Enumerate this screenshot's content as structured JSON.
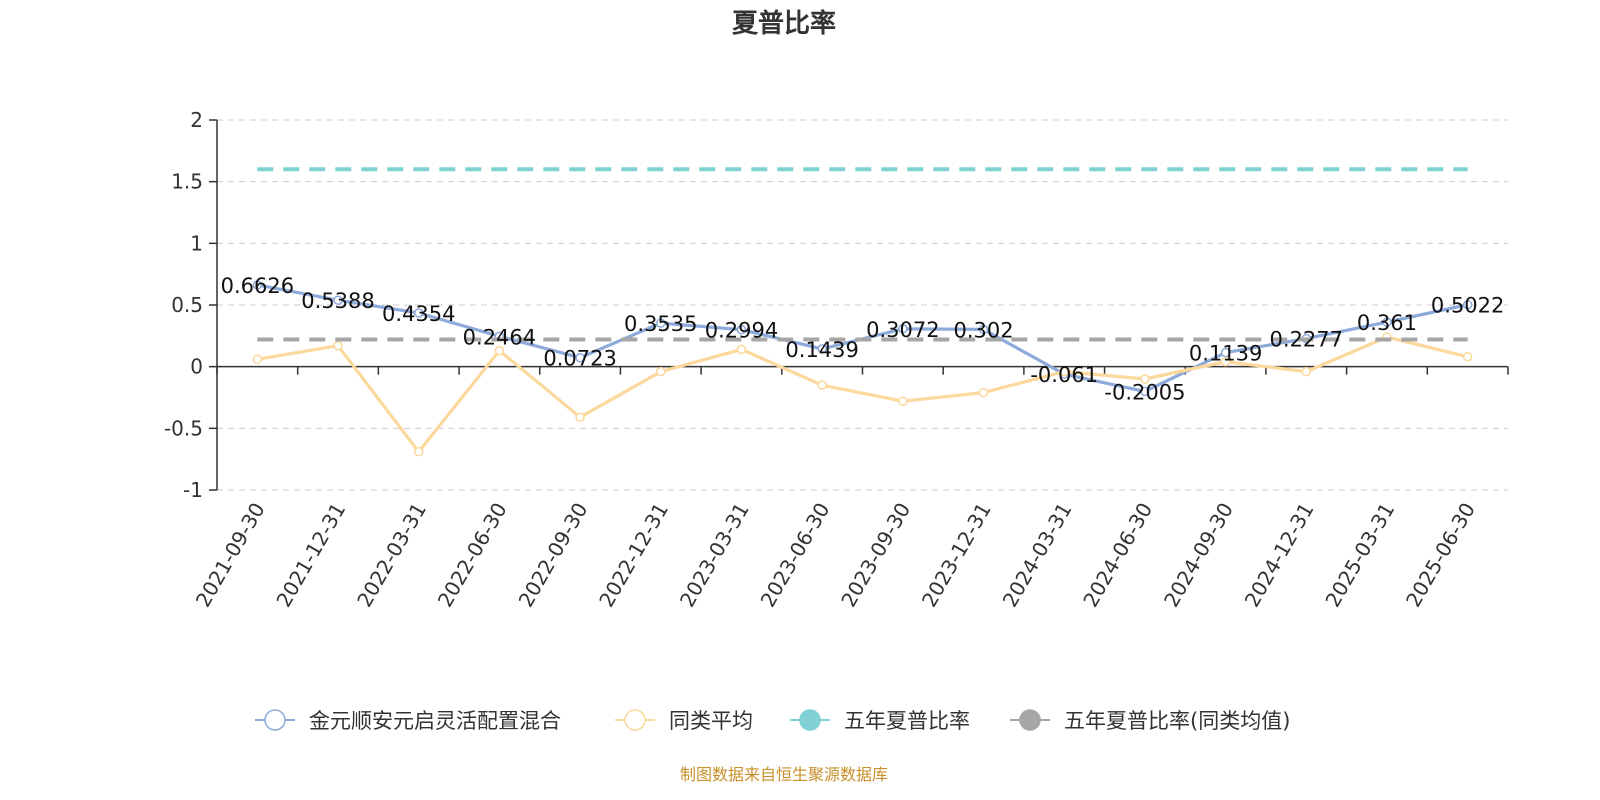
{
  "chart_data": {
    "type": "line",
    "title": "夏普比率",
    "source": "制图数据来自恒生聚源数据库",
    "categories": [
      "2021-09-30",
      "2021-12-31",
      "2022-03-31",
      "2022-06-30",
      "2022-09-30",
      "2022-12-31",
      "2023-03-31",
      "2023-06-30",
      "2023-09-30",
      "2023-12-31",
      "2024-03-31",
      "2024-06-30",
      "2024-09-30",
      "2024-12-31",
      "2025-03-31",
      "2025-06-30"
    ],
    "ylim": [
      -1,
      2
    ],
    "yticks": [
      -1,
      -0.5,
      0,
      0.5,
      1,
      1.5,
      2
    ],
    "ytick_labels": [
      "-1",
      "-0.5",
      "0",
      "0.5",
      "1",
      "1.5",
      "2"
    ],
    "grid": true,
    "legend_position": "bottom",
    "series": [
      {
        "name": "金元顺安元启灵活配置混合",
        "color": "#8eaadb",
        "values": [
          0.6626,
          0.5388,
          0.4354,
          0.2464,
          0.0723,
          0.3535,
          0.2994,
          0.1439,
          0.3072,
          0.302,
          -0.061,
          -0.2005,
          0.1139,
          0.2277,
          0.361,
          0.5022
        ],
        "labels": [
          "0.6626",
          "0.5388",
          "0.4354",
          "0.2464",
          "0.0723",
          "0.3535",
          "0.2994",
          "0.1439",
          "0.3072",
          "0.302",
          "-0.061",
          "-0.2005",
          "0.1139",
          "0.2277",
          "0.361",
          "0.5022"
        ]
      },
      {
        "name": "同类平均",
        "color": "#fbd89b",
        "values": [
          0.06,
          0.17,
          -0.69,
          0.13,
          -0.41,
          -0.04,
          0.14,
          -0.15,
          -0.28,
          -0.21,
          -0.04,
          -0.1,
          0.04,
          -0.04,
          0.24,
          0.08
        ]
      },
      {
        "name": "五年夏普比率",
        "color": "#7fd1d4",
        "values": [
          1.6,
          1.6,
          1.6,
          1.6,
          1.6,
          1.6,
          1.6,
          1.6,
          1.6,
          1.6,
          1.6,
          1.6,
          1.6,
          1.6,
          1.6,
          1.6
        ]
      },
      {
        "name": "五年夏普比率(同类均值)",
        "color": "#a6a6a6",
        "values": [
          0.22,
          0.22,
          0.22,
          0.22,
          0.22,
          0.22,
          0.22,
          0.22,
          0.22,
          0.22,
          0.22,
          0.22,
          0.22,
          0.22,
          0.22,
          0.22
        ]
      }
    ]
  }
}
